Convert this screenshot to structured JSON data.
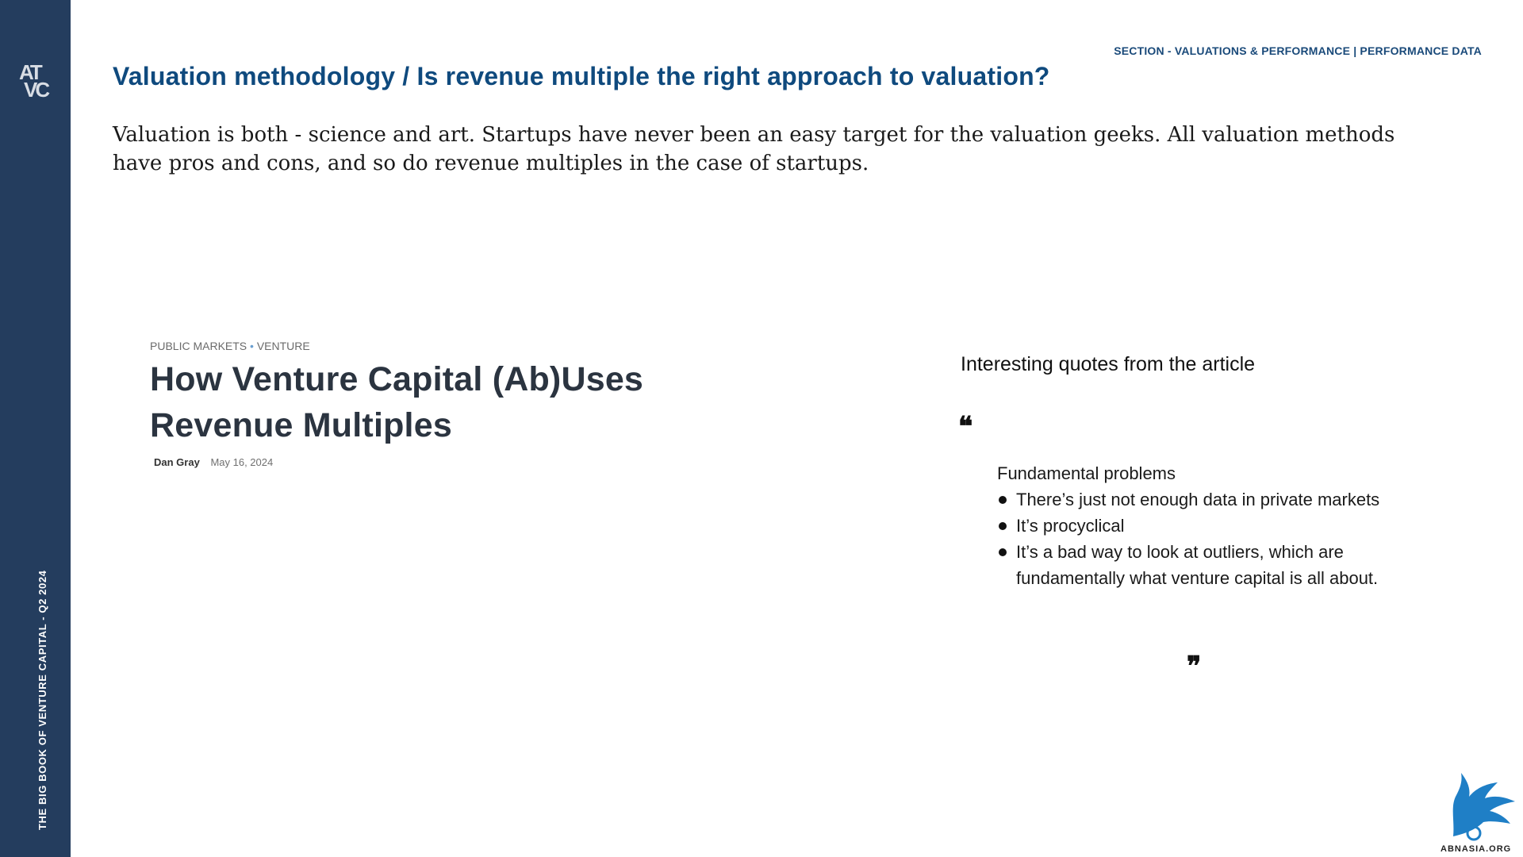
{
  "sidebar": {
    "logo_line1": "AT",
    "logo_line2": "VC",
    "vertical_text": "THE BIG BOOK OF VENTURE CAPITAL - Q2 2024"
  },
  "header": {
    "section_label": "SECTION - VALUATIONS & PERFORMANCE | PERFORMANCE DATA",
    "title": "Valuation methodology / Is revenue multiple the right approach to valuation?"
  },
  "intro": "Valuation is both - science and art. Startups have never been an easy target for the valuation geeks. All valuation methods have pros and cons, and so do revenue multiples in the case of startups.",
  "article": {
    "category_1": "PUBLIC MARKETS",
    "category_separator": "•",
    "category_2": "VENTURE",
    "title": "How Venture Capital (Ab)Uses Revenue Multiples",
    "author": "Dan Gray",
    "date": "May 16, 2024"
  },
  "quotes": {
    "heading": "Interesting quotes from the article",
    "open_mark": "❝",
    "close_mark": "❞",
    "lead": "Fundamental problems",
    "items": [
      "There’s just not enough data in private markets",
      "It’s procyclical",
      "It’s a bad way to look at outliers, which are fundamentally what venture capital is all about."
    ]
  },
  "watermark": {
    "text": "ABNASIA.ORG",
    "color": "#1f7fc6"
  },
  "colors": {
    "sidebar": "#243d5e",
    "title": "#0f4a7e"
  }
}
